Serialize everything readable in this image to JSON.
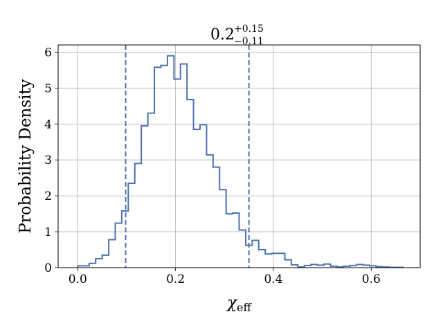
{
  "chart_data": {
    "type": "histogram-step",
    "title": {
      "base": "0.2",
      "upper": "+0.15",
      "lower": "−0.11"
    },
    "xlabel": "χ",
    "xlabel_sub": "eff",
    "ylabel": "Probability Density",
    "xlim": [
      -0.04,
      0.7
    ],
    "ylim": [
      0,
      6.2
    ],
    "x_ticks": [
      0.0,
      0.2,
      0.4,
      0.6
    ],
    "x_tick_labels": [
      "0.0",
      "0.2",
      "0.4",
      "0.6"
    ],
    "y_ticks": [
      0,
      1,
      2,
      3,
      4,
      5,
      6
    ],
    "y_tick_labels": [
      "0",
      "1",
      "2",
      "3",
      "4",
      "5",
      "6"
    ],
    "grid": true,
    "line_color": "#4c72b0",
    "bin_edges": [
      0.0,
      0.0234,
      0.0367,
      0.05,
      0.0634,
      0.0767,
      0.09,
      0.1034,
      0.1167,
      0.13,
      0.1434,
      0.1567,
      0.17,
      0.1834,
      0.1967,
      0.21,
      0.2234,
      0.2367,
      0.25,
      0.2634,
      0.2767,
      0.29,
      0.3034,
      0.3167,
      0.33,
      0.3434,
      0.3567,
      0.37,
      0.3834,
      0.3967,
      0.41,
      0.4234,
      0.4367,
      0.45,
      0.4634,
      0.4767,
      0.49,
      0.5034,
      0.5167,
      0.53,
      0.5434,
      0.5567,
      0.57,
      0.5834,
      0.5967,
      0.61,
      0.6234,
      0.6367,
      0.65,
      0.665
    ],
    "density": [
      0.05,
      0.12,
      0.25,
      0.35,
      0.78,
      1.24,
      1.58,
      2.35,
      2.9,
      3.95,
      4.3,
      5.58,
      5.63,
      5.9,
      5.25,
      5.67,
      4.68,
      3.85,
      3.98,
      3.14,
      2.8,
      2.17,
      1.5,
      1.52,
      1.05,
      0.62,
      0.76,
      0.5,
      0.38,
      0.4,
      0.4,
      0.22,
      0.08,
      0.02,
      0.06,
      0.09,
      0.07,
      0.1,
      0.04,
      0.02,
      0.04,
      0.06,
      0.09,
      0.07,
      0.05,
      0.03,
      0.02,
      0.01,
      0.01
    ],
    "vlines": [
      0.098,
      0.35
    ],
    "vline_style": "dashed"
  }
}
